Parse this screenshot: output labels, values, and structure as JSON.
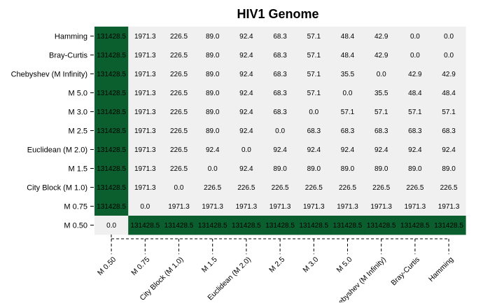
{
  "chart_data": {
    "type": "heatmap",
    "title": "HIV1 Genome",
    "xlabel": "",
    "ylabel": "",
    "x_labels": [
      "M 0.50",
      "M 0.75",
      "City Block (M 1.0)",
      "M 1.5",
      "Euclidean (M 2.0)",
      "M 2.5",
      "M 3.0",
      "M 5.0",
      "Chebyshev (M Infinity)",
      "Bray-Curtis",
      "Hamming"
    ],
    "y_labels": [
      "Hamming",
      "Bray-Curtis",
      "Chebyshev (M Infinity)",
      "M 5.0",
      "M 3.0",
      "M 2.5",
      "Euclidean (M 2.0)",
      "M 1.5",
      "City Block (M 1.0)",
      "M 0.75",
      "M 0.50"
    ],
    "cell_labels": [
      [
        "131428.5",
        "1971.3",
        "226.5",
        "89.0",
        "92.4",
        "68.3",
        "57.1",
        "48.4",
        "42.9",
        "0.0",
        "0.0"
      ],
      [
        "131428.5",
        "1971.3",
        "226.5",
        "89.0",
        "92.4",
        "68.3",
        "57.1",
        "48.4",
        "42.9",
        "0.0",
        "0.0"
      ],
      [
        "131428.5",
        "1971.3",
        "226.5",
        "89.0",
        "92.4",
        "68.3",
        "57.1",
        "35.5",
        "0.0",
        "42.9",
        "42.9"
      ],
      [
        "131428.5",
        "1971.3",
        "226.5",
        "89.0",
        "92.4",
        "68.3",
        "57.1",
        "0.0",
        "35.5",
        "48.4",
        "48.4"
      ],
      [
        "131428.5",
        "1971.3",
        "226.5",
        "89.0",
        "92.4",
        "68.3",
        "0.0",
        "57.1",
        "57.1",
        "57.1",
        "57.1"
      ],
      [
        "131428.5",
        "1971.3",
        "226.5",
        "89.0",
        "92.4",
        "0.0",
        "68.3",
        "68.3",
        "68.3",
        "68.3",
        "68.3"
      ],
      [
        "131428.5",
        "1971.3",
        "226.5",
        "92.4",
        "0.0",
        "92.4",
        "92.4",
        "92.4",
        "92.4",
        "92.4",
        "92.4"
      ],
      [
        "131428.5",
        "1971.3",
        "226.5",
        "0.0",
        "92.4",
        "89.0",
        "89.0",
        "89.0",
        "89.0",
        "89.0",
        "89.0"
      ],
      [
        "131428.5",
        "1971.3",
        "0.0",
        "226.5",
        "226.5",
        "226.5",
        "226.5",
        "226.5",
        "226.5",
        "226.5",
        "226.5"
      ],
      [
        "131428.5",
        "0.0",
        "1971.3",
        "1971.3",
        "1971.3",
        "1971.3",
        "1971.3",
        "1971.3",
        "1971.3",
        "1971.3",
        "1971.3"
      ],
      [
        "0.0",
        "131428.5",
        "131428.5",
        "131428.5",
        "131428.5",
        "131428.5",
        "131428.5",
        "131428.5",
        "131428.5",
        "131428.5",
        "131428.5"
      ]
    ],
    "max_value": 131428.5,
    "colors": {
      "high": "#0b5e2d",
      "low": "#f0f0f0",
      "text_on_low": "#000000",
      "text_on_high": "#000000"
    },
    "grid": false,
    "legend": "none"
  }
}
